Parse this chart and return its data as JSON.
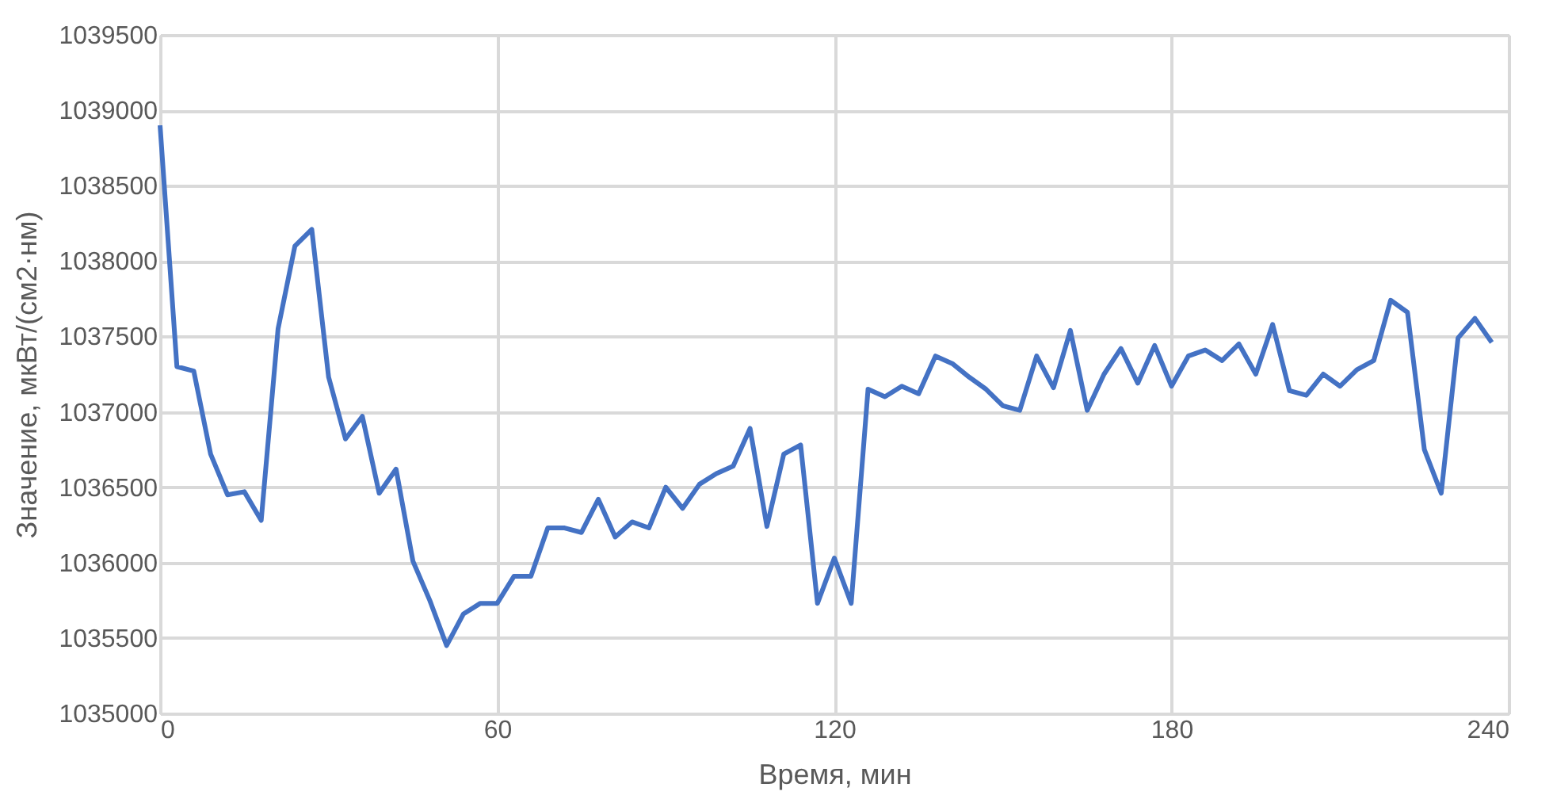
{
  "chart_data": {
    "type": "line",
    "xlabel": "Время, мин",
    "ylabel": "Значение, мкВт/(см2·нм)",
    "x": [
      0,
      3,
      6,
      9,
      12,
      15,
      18,
      21,
      24,
      27,
      30,
      33,
      36,
      39,
      42,
      45,
      48,
      51,
      54,
      57,
      60,
      63,
      66,
      69,
      72,
      75,
      78,
      81,
      84,
      87,
      90,
      93,
      96,
      99,
      102,
      105,
      108,
      111,
      114,
      117,
      120,
      123,
      126,
      129,
      132,
      135,
      138,
      141,
      144,
      147,
      150,
      153,
      156,
      159,
      162,
      165,
      168,
      171,
      174,
      177,
      180,
      183,
      186,
      189,
      192,
      195,
      198,
      201,
      204,
      207,
      210,
      213,
      216,
      219,
      222,
      225,
      228,
      231,
      234,
      237
    ],
    "series": [
      {
        "color": "#4472c4",
        "values": [
          1038900,
          1037300,
          1037270,
          1036720,
          1036450,
          1036470,
          1036280,
          1037550,
          1038100,
          1038210,
          1037230,
          1036820,
          1036970,
          1036460,
          1036620,
          1036010,
          1035750,
          1035450,
          1035660,
          1035730,
          1035730,
          1035910,
          1035910,
          1036230,
          1036230,
          1036200,
          1036420,
          1036170,
          1036270,
          1036230,
          1036500,
          1036360,
          1036520,
          1036590,
          1036640,
          1036890,
          1036240,
          1036720,
          1036780,
          1035730,
          1036030,
          1035730,
          1037150,
          1037100,
          1037170,
          1037120,
          1037370,
          1037320,
          1037230,
          1037150,
          1037040,
          1037010,
          1037370,
          1037160,
          1037540,
          1037010,
          1037250,
          1037420,
          1037190,
          1037440,
          1037170,
          1037370,
          1037410,
          1037340,
          1037450,
          1037250,
          1037580,
          1037140,
          1037110,
          1037250,
          1037170,
          1037280,
          1037340,
          1037740,
          1037660,
          1036750,
          1036460,
          1037490,
          1037620,
          1037460
        ]
      }
    ],
    "xlim": [
      0,
      240
    ],
    "xticks": [
      0,
      60,
      120,
      180,
      240
    ],
    "ylim": [
      1035000,
      1039500
    ],
    "yticks": [
      1035000,
      1035500,
      1036000,
      1036500,
      1037000,
      1037500,
      1038000,
      1038500,
      1039000,
      1039500
    ],
    "grid": true,
    "marker": "none",
    "line_style": "solid",
    "legend": false
  }
}
